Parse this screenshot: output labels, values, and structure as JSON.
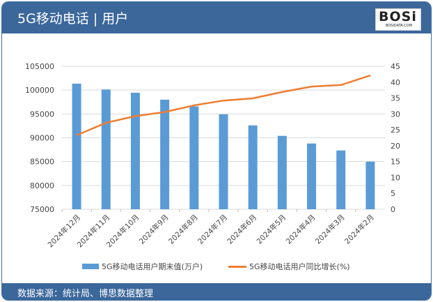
{
  "header": {
    "title": "5G移动电话 | 用户",
    "logo_text": "BOSi",
    "logo_sub": "BOSIDATA.COM"
  },
  "footer": {
    "source": "数据来源：统计局、博思数据整理"
  },
  "colors": {
    "bar": "#5b9bd5",
    "line": "#ed7d31",
    "header": "#3b679b"
  },
  "chart_data": {
    "type": "bar+line",
    "categories": [
      "2024年12月",
      "2024年11月",
      "2024年10月",
      "2024年9月",
      "2024年8月",
      "2024年7月",
      "2024年6月",
      "2024年5月",
      "2024年4月",
      "2024年3月",
      "2024年2月"
    ],
    "series": [
      {
        "name": "5G移动电话用户期末值(万户)",
        "type": "bar",
        "axis": "left",
        "values": [
          101350,
          100130,
          99450,
          97990,
          96580,
          94920,
          92590,
          90400,
          88790,
          87330,
          84990
        ]
      },
      {
        "name": "5G移动电话用户同比增长(%)",
        "type": "line",
        "axis": "right",
        "values": [
          23.3,
          27.2,
          29.3,
          30.6,
          32.7,
          34.2,
          34.9,
          36.9,
          38.6,
          39.1,
          42.1
        ]
      }
    ],
    "ylim_left": [
      75000,
      105000
    ],
    "yticks_left": [
      "75000",
      "80000",
      "85000",
      "90000",
      "95000",
      "100000",
      "105000"
    ],
    "ylim_right": [
      0,
      45
    ],
    "yticks_right": [
      "0",
      "5",
      "10",
      "15",
      "20",
      "25",
      "30",
      "35",
      "40",
      "45"
    ],
    "grid": true,
    "legend": "bottom"
  }
}
